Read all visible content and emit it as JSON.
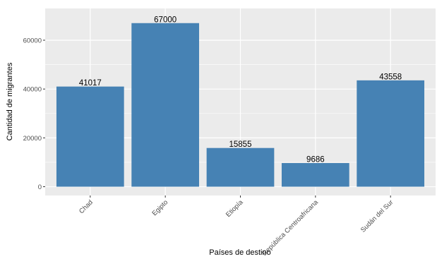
{
  "chart_data": {
    "type": "bar",
    "categories": [
      "Chad",
      "Egipto",
      "Etiopía",
      "República Centroafricana",
      "Sudán del Sur"
    ],
    "values": [
      41017,
      67000,
      15855,
      9686,
      43558
    ],
    "data_labels": [
      "41017",
      "67000",
      "15855",
      "9686",
      "43558"
    ],
    "xlabel": "Países de destino",
    "ylabel": "Cantidad de migrantes",
    "ylim": [
      -3600,
      73000
    ],
    "yticks": [
      0,
      20000,
      40000,
      60000
    ],
    "ytick_labels": [
      "0",
      "20000",
      "40000",
      "60000"
    ],
    "grid": true,
    "bar_color": "#4682b4",
    "panel_color": "#ebebeb"
  }
}
